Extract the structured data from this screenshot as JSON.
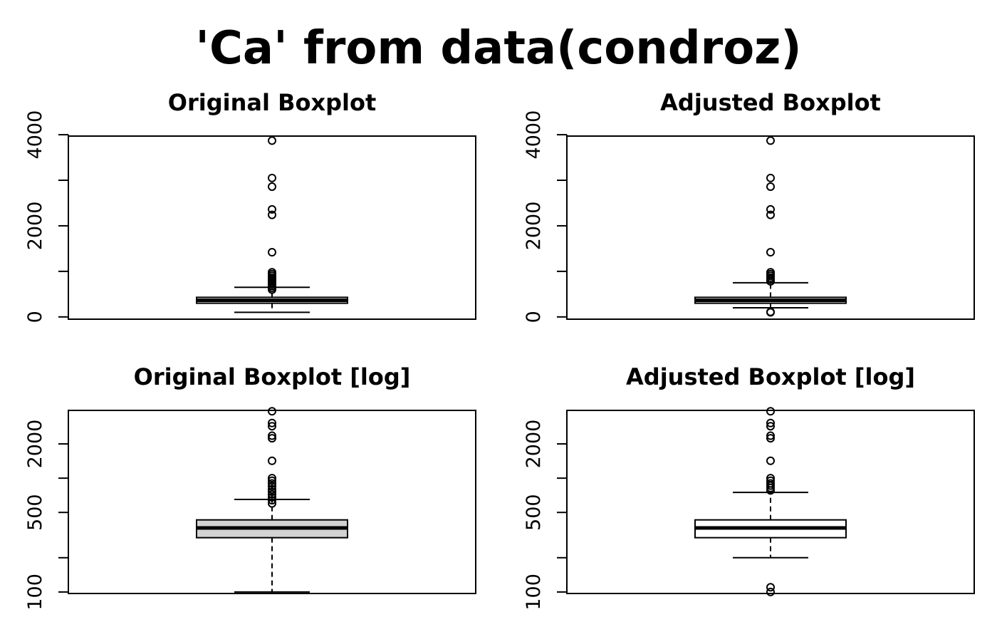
{
  "title": "'Ca' from data(condroz)",
  "chart_data": [
    {
      "type": "boxplot",
      "title": "Original Boxplot",
      "scale": "linear",
      "ylim": [
        -50,
        3970
      ],
      "yticks": [
        0,
        1000,
        2000,
        3000,
        4000
      ],
      "ytick_labels": [
        "0",
        "",
        "2000",
        "",
        "4000"
      ],
      "box_fill": "#ffffff",
      "whisker_low": 100,
      "q1": 300,
      "median": 365,
      "q3": 430,
      "whisker_high": 650,
      "outliers": [
        600,
        640,
        680,
        720,
        760,
        790,
        820,
        860,
        900,
        940,
        980,
        1420,
        2240,
        2360,
        2860,
        3050,
        3870
      ]
    },
    {
      "type": "boxplot",
      "title": "Adjusted Boxplot",
      "scale": "linear",
      "ylim": [
        -50,
        3970
      ],
      "yticks": [
        0,
        1000,
        2000,
        3000,
        4000
      ],
      "ytick_labels": [
        "0",
        "",
        "2000",
        "",
        "4000"
      ],
      "box_fill": "#ffffff",
      "whisker_low": 200,
      "q1": 300,
      "median": 365,
      "q3": 430,
      "whisker_high": 750,
      "outliers": [
        100,
        110,
        780,
        820,
        860,
        900,
        940,
        980,
        1420,
        2240,
        2360,
        2860,
        3050,
        3870
      ]
    },
    {
      "type": "boxplot",
      "title": "Original Boxplot [log]",
      "scale": "log",
      "ylim": [
        97,
        3940
      ],
      "yticks": [
        100,
        200,
        500,
        1000,
        2000
      ],
      "ytick_labels": [
        "100",
        "",
        "500",
        "",
        "2000"
      ],
      "box_fill": "#d3d3d3",
      "whisker_low": 100,
      "q1": 300,
      "median": 365,
      "q3": 430,
      "whisker_high": 650,
      "outliers": [
        600,
        640,
        680,
        720,
        760,
        800,
        850,
        900,
        950,
        1000,
        1420,
        2240,
        2360,
        2860,
        3050,
        3870
      ]
    },
    {
      "type": "boxplot",
      "title": "Adjusted Boxplot [log]",
      "scale": "log",
      "ylim": [
        97,
        3940
      ],
      "yticks": [
        100,
        200,
        500,
        1000,
        2000
      ],
      "ytick_labels": [
        "100",
        "",
        "500",
        "",
        "2000"
      ],
      "box_fill": "#ffffff",
      "whisker_low": 200,
      "q1": 300,
      "median": 365,
      "q3": 430,
      "whisker_high": 750,
      "outliers": [
        100,
        110,
        780,
        820,
        860,
        900,
        950,
        1000,
        1420,
        2240,
        2360,
        2860,
        3050,
        3870
      ]
    }
  ]
}
